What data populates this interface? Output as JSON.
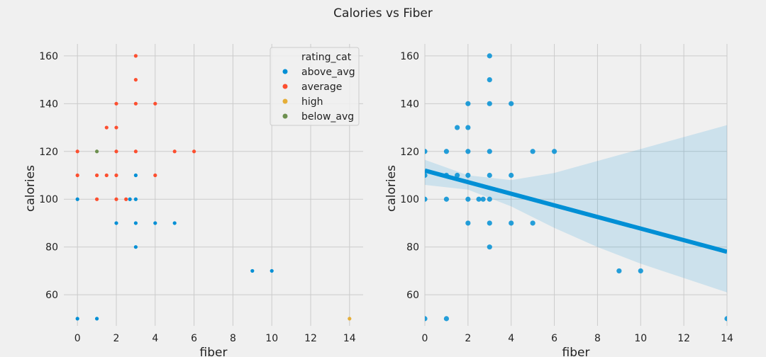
{
  "figure": {
    "title": "Calories vs Fiber"
  },
  "chart_data": [
    {
      "type": "scatter",
      "xlabel": "fiber",
      "ylabel": "calories",
      "xlim": [
        -0.7,
        14.7
      ],
      "ylim": [
        47,
        165
      ],
      "xticks": [
        "0",
        "2",
        "4",
        "6",
        "8",
        "10",
        "12",
        "14"
      ],
      "yticks": [
        "60",
        "80",
        "100",
        "120",
        "140",
        "160"
      ],
      "grid": true,
      "legend": {
        "title": "rating_cat",
        "placement": "top-right",
        "entries": [
          "above_avg",
          "average",
          "high",
          "below_avg"
        ]
      },
      "series": [
        {
          "name": "above_avg",
          "color": "#008fd5",
          "points": [
            [
              0,
              100
            ],
            [
              0,
              50
            ],
            [
              1,
              50
            ],
            [
              2,
              90
            ],
            [
              2.7,
              100
            ],
            [
              3,
              100
            ],
            [
              3,
              110
            ],
            [
              3,
              90
            ],
            [
              3,
              80
            ],
            [
              4,
              90
            ],
            [
              5,
              90
            ],
            [
              9,
              70
            ],
            [
              10,
              70
            ]
          ]
        },
        {
          "name": "average",
          "color": "#fc4f30",
          "points": [
            [
              0,
              120
            ],
            [
              0,
              110
            ],
            [
              1,
              110
            ],
            [
              1,
              100
            ],
            [
              1.5,
              130
            ],
            [
              1.5,
              110
            ],
            [
              2,
              140
            ],
            [
              2,
              130
            ],
            [
              2,
              120
            ],
            [
              2,
              110
            ],
            [
              2,
              100
            ],
            [
              2.5,
              100
            ],
            [
              3,
              160
            ],
            [
              3,
              150
            ],
            [
              3,
              140
            ],
            [
              3,
              120
            ],
            [
              4,
              140
            ],
            [
              4,
              110
            ],
            [
              5,
              120
            ],
            [
              6,
              120
            ]
          ]
        },
        {
          "name": "high",
          "color": "#e5ae38",
          "points": [
            [
              14,
              50
            ]
          ]
        },
        {
          "name": "below_avg",
          "color": "#6d904f",
          "points": [
            [
              1,
              120
            ]
          ]
        }
      ]
    },
    {
      "type": "scatter",
      "xlabel": "fiber",
      "ylabel": "calories",
      "xlim": [
        0,
        14
      ],
      "ylim": [
        47,
        165
      ],
      "xticks": [
        "0",
        "2",
        "4",
        "6",
        "8",
        "10",
        "12",
        "14"
      ],
      "yticks": [
        "60",
        "80",
        "100",
        "120",
        "140",
        "160"
      ],
      "grid": true,
      "series": [
        {
          "color": "#008fd5",
          "points": [
            [
              0,
              120
            ],
            [
              0,
              110
            ],
            [
              0,
              100
            ],
            [
              0,
              50
            ],
            [
              1,
              120
            ],
            [
              1,
              110
            ],
            [
              1,
              100
            ],
            [
              1,
              50
            ],
            [
              1.5,
              130
            ],
            [
              1.5,
              110
            ],
            [
              2,
              140
            ],
            [
              2,
              130
            ],
            [
              2,
              120
            ],
            [
              2,
              110
            ],
            [
              2,
              100
            ],
            [
              2,
              90
            ],
            [
              2.5,
              100
            ],
            [
              2.7,
              100
            ],
            [
              3,
              160
            ],
            [
              3,
              150
            ],
            [
              3,
              140
            ],
            [
              3,
              120
            ],
            [
              3,
              110
            ],
            [
              3,
              100
            ],
            [
              3,
              90
            ],
            [
              3,
              80
            ],
            [
              4,
              140
            ],
            [
              4,
              110
            ],
            [
              4,
              90
            ],
            [
              5,
              120
            ],
            [
              5,
              90
            ],
            [
              6,
              120
            ],
            [
              9,
              70
            ],
            [
              10,
              70
            ],
            [
              14,
              50
            ]
          ]
        }
      ],
      "regression": {
        "color": "#008fd5",
        "line": [
          [
            0,
            112
          ],
          [
            14,
            78
          ]
        ],
        "ci_upper": [
          [
            0,
            116.5
          ],
          [
            2,
            110
          ],
          [
            4,
            108
          ],
          [
            6,
            111
          ],
          [
            8,
            116
          ],
          [
            10,
            121
          ],
          [
            12,
            126
          ],
          [
            14,
            131
          ]
        ],
        "ci_lower": [
          [
            0,
            106
          ],
          [
            2,
            104
          ],
          [
            4,
            97
          ],
          [
            6,
            88
          ],
          [
            8,
            80
          ],
          [
            10,
            73
          ],
          [
            12,
            67
          ],
          [
            14,
            61
          ]
        ]
      }
    }
  ]
}
